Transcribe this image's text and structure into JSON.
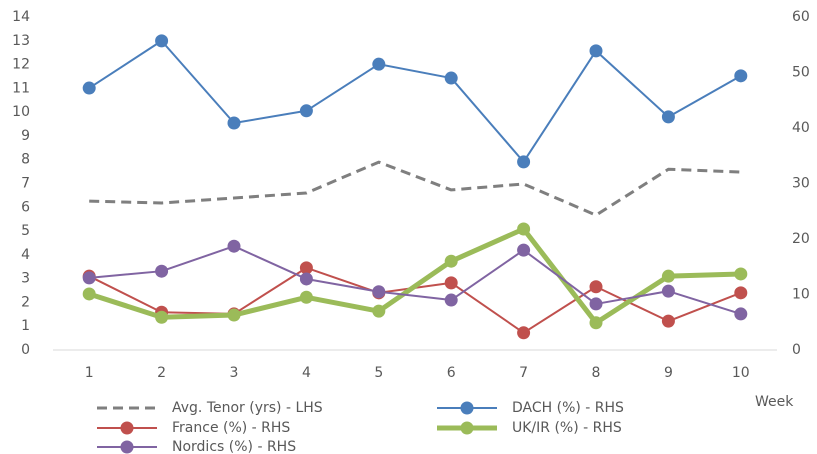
{
  "chart_data": {
    "type": "line",
    "categories": [
      "1",
      "2",
      "3",
      "4",
      "5",
      "6",
      "7",
      "8",
      "9",
      "10"
    ],
    "xlabel": "Week",
    "ylim": [
      0,
      14
    ],
    "yticks": [
      0,
      1,
      2,
      3,
      4,
      5,
      6,
      7,
      8,
      9,
      10,
      11,
      12,
      13,
      14
    ],
    "y2lim": [
      0,
      60
    ],
    "y2ticks": [
      0,
      10,
      20,
      30,
      40,
      50,
      60
    ],
    "grid": false,
    "series": [
      {
        "name": "Avg. Tenor (yrs) - LHS",
        "color": "#7f7f7f",
        "dashed": true,
        "marker": false,
        "width": 3,
        "values": [
          6.26,
          6.18,
          6.39,
          6.6,
          7.9,
          6.73,
          6.98,
          5.67,
          7.6,
          7.48
        ]
      },
      {
        "name": "DACH (%) - RHS",
        "color": "#4a7ebb",
        "axis": "y2",
        "marker": true,
        "width": 2,
        "values": [
          47.2,
          55.7,
          40.9,
          43.1,
          51.5,
          49.0,
          33.9,
          53.9,
          42.0,
          49.4
        ]
      },
      {
        "name": "France (%) - RHS",
        "color": "#c0504d",
        "axis": "y2",
        "marker": true,
        "width": 2,
        "values": [
          13.3,
          6.8,
          6.5,
          14.8,
          10.3,
          12.1,
          3.1,
          11.4,
          5.2,
          10.3
        ]
      },
      {
        "name": "UK/IR (%) - RHS",
        "color": "#9bbb59",
        "axis": "y2",
        "marker": true,
        "width": 5,
        "values": [
          10.1,
          5.9,
          6.3,
          9.5,
          7.0,
          16.0,
          21.8,
          4.9,
          13.3,
          13.7
        ]
      },
      {
        "name": "Nordics (%) - RHS",
        "color": "#8064a2",
        "axis": "y2",
        "marker": true,
        "width": 2,
        "values": [
          13.0,
          14.2,
          18.7,
          12.8,
          10.5,
          9.0,
          18.0,
          8.3,
          10.6,
          6.5
        ]
      }
    ]
  }
}
